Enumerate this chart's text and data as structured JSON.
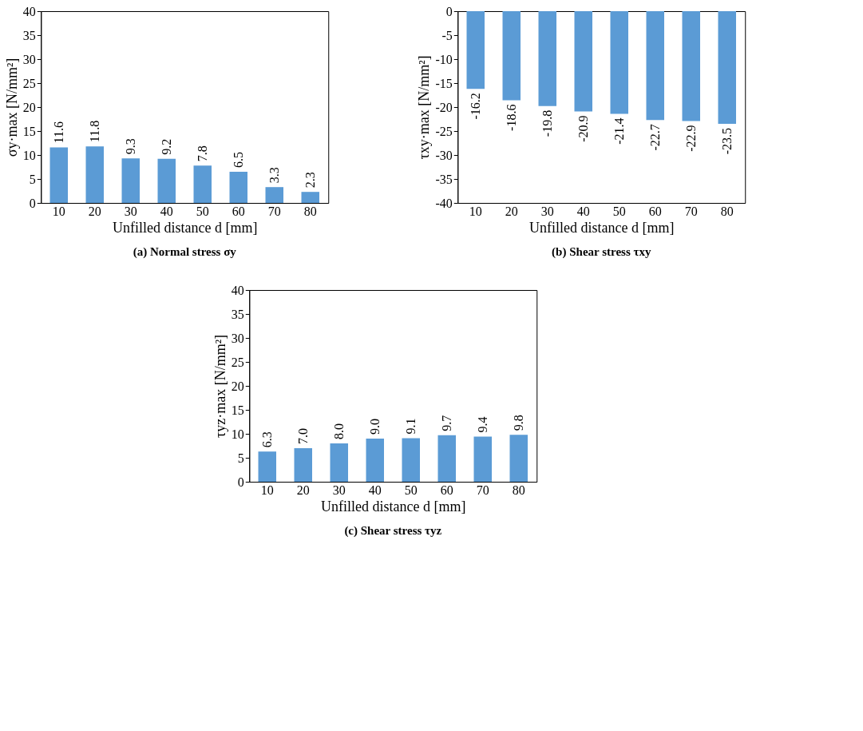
{
  "chart_data": [
    {
      "type": "bar",
      "title": "(a) Normal stress σy",
      "xlabel": "Unfilled distance d [mm]",
      "ylabel": "σy·max [N/mm²]",
      "categories": [
        "10",
        "20",
        "30",
        "40",
        "50",
        "60",
        "70",
        "80"
      ],
      "values": [
        11.6,
        11.8,
        9.3,
        9.2,
        7.8,
        6.5,
        3.3,
        2.3
      ],
      "color": "#5b9bd5",
      "ylim": [
        0,
        40
      ],
      "yticks": [
        0,
        5,
        10,
        15,
        20,
        25,
        30,
        35,
        40
      ],
      "grid": false,
      "data_labels": true
    },
    {
      "type": "bar",
      "title": "(b) Shear stress τxy",
      "xlabel": "Unfilled distance d [mm]",
      "ylabel": "τxy·max [N/mm²]",
      "categories": [
        "10",
        "20",
        "30",
        "40",
        "50",
        "60",
        "70",
        "80"
      ],
      "values": [
        -16.2,
        -18.6,
        -19.8,
        -20.9,
        -21.4,
        -22.7,
        -22.9,
        -23.5
      ],
      "color": "#5b9bd5",
      "ylim": [
        -40,
        0
      ],
      "yticks": [
        -40,
        -35,
        -30,
        -25,
        -20,
        -15,
        -10,
        -5,
        0
      ],
      "grid": false,
      "data_labels": true
    },
    {
      "type": "bar",
      "title": "(c) Shear stress τyz",
      "xlabel": "Unfilled distance d [mm]",
      "ylabel": "τyz·max [N/mm²]",
      "categories": [
        "10",
        "20",
        "30",
        "40",
        "50",
        "60",
        "70",
        "80"
      ],
      "values": [
        6.3,
        7.0,
        8.0,
        9.0,
        9.1,
        9.7,
        9.4,
        9.8
      ],
      "value_labels": [
        "6.3",
        "7.0",
        "8.0",
        "9.0",
        "9.1",
        "9.7",
        "9.4",
        "9.8"
      ],
      "color": "#5b9bd5",
      "ylim": [
        0,
        40
      ],
      "yticks": [
        0,
        5,
        10,
        15,
        20,
        25,
        30,
        35,
        40
      ],
      "grid": false,
      "data_labels": true
    }
  ]
}
